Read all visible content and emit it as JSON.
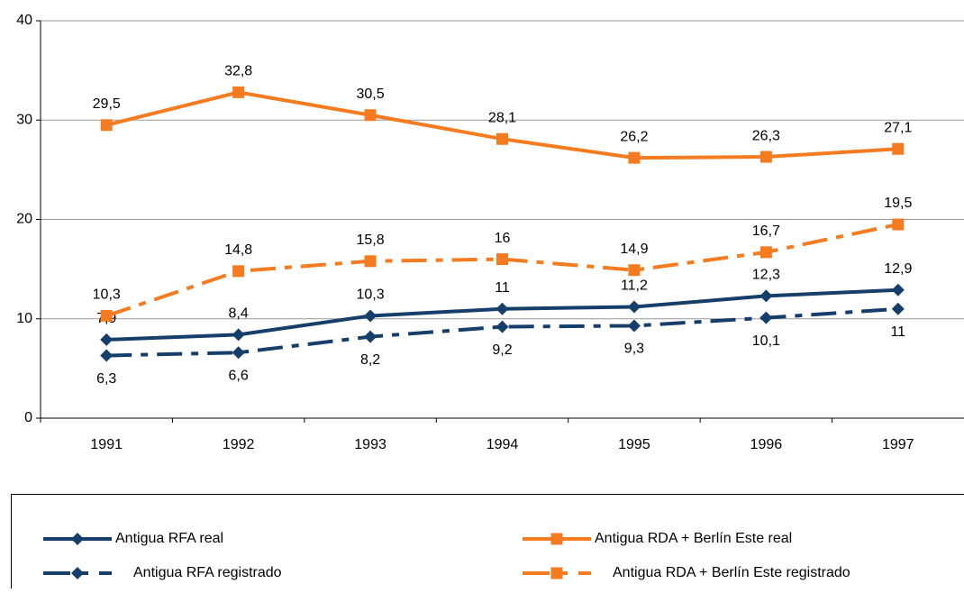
{
  "chart_data": {
    "type": "line",
    "categories": [
      "1991",
      "1992",
      "1993",
      "1994",
      "1995",
      "1996",
      "1997"
    ],
    "ylim": [
      0,
      40
    ],
    "yticks": [
      0,
      10,
      20,
      30,
      40
    ],
    "grid": true,
    "series": [
      {
        "name": "Antigua RFA real",
        "color": "#163e6b",
        "marker": "diamond",
        "line_style": "solid",
        "label_position": "above",
        "values": [
          7.9,
          8.4,
          10.3,
          11,
          11.2,
          12.3,
          12.9
        ],
        "value_labels": [
          "7,9",
          "8,4",
          "10,3",
          "11",
          "11,2",
          "12,3",
          "12,9"
        ]
      },
      {
        "name": "Antigua RDA + Berlín Este real",
        "color": "#f47b20",
        "marker": "square",
        "line_style": "solid",
        "label_position": "above",
        "values": [
          29.5,
          32.8,
          30.5,
          28.1,
          26.2,
          26.3,
          27.1
        ],
        "value_labels": [
          "29,5",
          "32,8",
          "30,5",
          "28,1",
          "26,2",
          "26,3",
          "27,1"
        ]
      },
      {
        "name": "Antigua RFA registrado",
        "color": "#163e6b",
        "marker": "diamond",
        "line_style": "dashdot",
        "label_position": "below",
        "values": [
          6.3,
          6.6,
          8.2,
          9.2,
          9.3,
          10.1,
          11
        ],
        "value_labels": [
          "6,3",
          "6,6",
          "8,2",
          "9,2",
          "9,3",
          "10,1",
          "11"
        ]
      },
      {
        "name": "Antigua RDA + Berlín Este registrado",
        "color": "#f47b20",
        "marker": "square",
        "line_style": "dashdot",
        "label_position": "above",
        "values": [
          10.3,
          14.8,
          15.8,
          16,
          14.9,
          16.7,
          19.5
        ],
        "value_labels": [
          "10,3",
          "14,8",
          "15,8",
          "16",
          "14,9",
          "16,7",
          "19,5"
        ]
      }
    ]
  }
}
